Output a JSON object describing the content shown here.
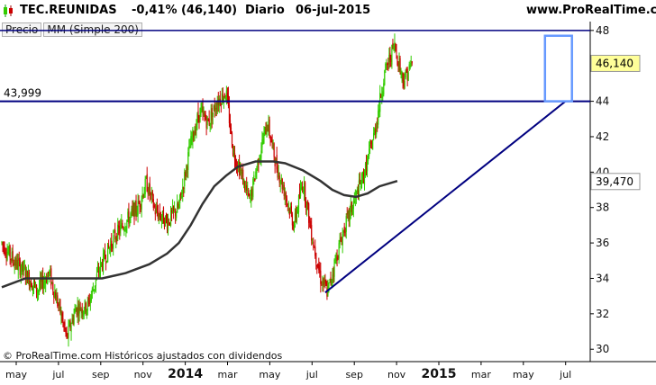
{
  "header": {
    "ticker": "TEC.REUNIDAS",
    "change": "-0,41% (46,140)",
    "period": "Diario",
    "date": "06-jul-2015",
    "site": "www.ProRealTime.com"
  },
  "legend": {
    "price": "Precio",
    "ma": "MM (Simple 200)"
  },
  "copyright": "© ProRealTime.com  Históricos ajustados con dividendos",
  "colors": {
    "up": "#33cc00",
    "down": "#cc0000",
    "ma": "#333333",
    "lines": "#000080",
    "box": "#6699ff",
    "last_price_bg": "#ffff99",
    "ma_label_bg": "#ffffff"
  },
  "chart_data": {
    "type": "candlestick",
    "ylim": [
      29.3,
      48.5
    ],
    "yticks": [
      30,
      32,
      34,
      36,
      38,
      40,
      42,
      44,
      46,
      48
    ],
    "x_labels": [
      {
        "label": "may",
        "year": false
      },
      {
        "label": "jul",
        "year": false
      },
      {
        "label": "sep",
        "year": false
      },
      {
        "label": "nov",
        "year": false
      },
      {
        "label": "2014",
        "year": true
      },
      {
        "label": "mar",
        "year": false
      },
      {
        "label": "may",
        "year": false
      },
      {
        "label": "jul",
        "year": false
      },
      {
        "label": "sep",
        "year": false
      },
      {
        "label": "nov",
        "year": false
      },
      {
        "label": "2015",
        "year": true
      },
      {
        "label": "mar",
        "year": false
      },
      {
        "label": "may",
        "year": false
      },
      {
        "label": "jul",
        "year": false
      }
    ],
    "last_price": "46,140",
    "last_price_value": 46.14,
    "ma_value_label": "39,470",
    "ma_value": 39.47,
    "resistance": {
      "value": 43.999,
      "label": "43,999"
    },
    "top_line": {
      "value": 48.0
    },
    "trendline": {
      "from": [
        0.555,
        33.2
      ],
      "to": [
        0.965,
        44.0
      ]
    },
    "highlight_box": {
      "x0": 0.93,
      "x1": 0.976,
      "y0": 44.0,
      "y1": 47.7
    },
    "price_path": [
      [
        0.0,
        36.0
      ],
      [
        0.02,
        35.0
      ],
      [
        0.04,
        34.3
      ],
      [
        0.06,
        33.3
      ],
      [
        0.08,
        34.3
      ],
      [
        0.1,
        32.0
      ],
      [
        0.11,
        30.6
      ],
      [
        0.125,
        32.3
      ],
      [
        0.145,
        32.4
      ],
      [
        0.165,
        34.5
      ],
      [
        0.19,
        36.3
      ],
      [
        0.21,
        37.2
      ],
      [
        0.23,
        38.0
      ],
      [
        0.245,
        39.4
      ],
      [
        0.26,
        37.8
      ],
      [
        0.28,
        37.2
      ],
      [
        0.3,
        38.0
      ],
      [
        0.32,
        41.6
      ],
      [
        0.335,
        43.4
      ],
      [
        0.35,
        42.8
      ],
      [
        0.365,
        44.0
      ],
      [
        0.38,
        44.5
      ],
      [
        0.392,
        41.2
      ],
      [
        0.405,
        40.0
      ],
      [
        0.42,
        38.3
      ],
      [
        0.435,
        40.8
      ],
      [
        0.45,
        42.8
      ],
      [
        0.465,
        40.4
      ],
      [
        0.48,
        38.8
      ],
      [
        0.495,
        37.0
      ],
      [
        0.51,
        39.5
      ],
      [
        0.525,
        36.5
      ],
      [
        0.54,
        34.0
      ],
      [
        0.552,
        33.2
      ],
      [
        0.565,
        35.0
      ],
      [
        0.58,
        36.8
      ],
      [
        0.6,
        38.6
      ],
      [
        0.615,
        40.0
      ],
      [
        0.632,
        42.3
      ],
      [
        0.648,
        45.5
      ],
      [
        0.665,
        47.2
      ],
      [
        0.68,
        45.2
      ],
      [
        0.695,
        46.1
      ]
    ],
    "ma_path": [
      [
        0.0,
        33.5
      ],
      [
        0.04,
        34.0
      ],
      [
        0.09,
        34.0
      ],
      [
        0.14,
        34.0
      ],
      [
        0.17,
        34.0
      ],
      [
        0.21,
        34.3
      ],
      [
        0.25,
        34.8
      ],
      [
        0.28,
        35.4
      ],
      [
        0.3,
        36.0
      ],
      [
        0.32,
        37.0
      ],
      [
        0.34,
        38.2
      ],
      [
        0.36,
        39.2
      ],
      [
        0.38,
        39.8
      ],
      [
        0.4,
        40.3
      ],
      [
        0.43,
        40.6
      ],
      [
        0.46,
        40.6
      ],
      [
        0.48,
        40.5
      ],
      [
        0.51,
        40.1
      ],
      [
        0.54,
        39.5
      ],
      [
        0.56,
        39.0
      ],
      [
        0.58,
        38.7
      ],
      [
        0.6,
        38.6
      ],
      [
        0.62,
        38.8
      ],
      [
        0.64,
        39.2
      ],
      [
        0.67,
        39.5
      ]
    ]
  }
}
